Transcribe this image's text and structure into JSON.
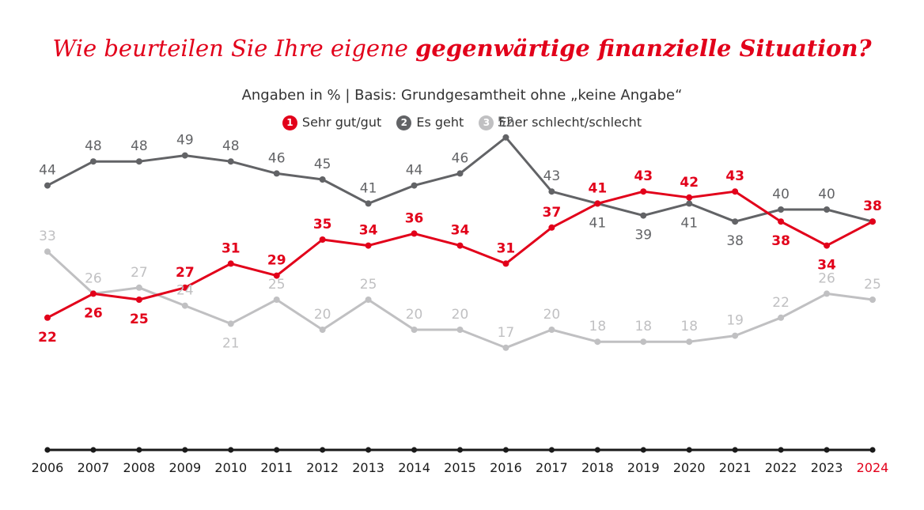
{
  "title": {
    "part1": "Wie beurteilen Sie Ihre eigene ",
    "part2": "gegenwärtige finanzielle Situation?"
  },
  "subtitle": "Angaben in % | Basis: Grundgesamtheit ohne „keine Angabe“",
  "colors": {
    "red": "#e2001a",
    "dark": "#626366",
    "light": "#c0c0c2",
    "axis": "#1a1a1a"
  },
  "chart_data": {
    "type": "line",
    "categories": [
      "2006",
      "2007",
      "2008",
      "2009",
      "2010",
      "2011",
      "2012",
      "2013",
      "2014",
      "2015",
      "2016",
      "2017",
      "2018",
      "2019",
      "2020",
      "2021",
      "2022",
      "2023",
      "2024"
    ],
    "highlight_category": "2024",
    "ylim": [
      0,
      60
    ],
    "series": [
      {
        "key": "s1",
        "number": "1",
        "name": "Sehr gut/gut",
        "color": "#e2001a",
        "values": [
          22,
          26,
          25,
          27,
          31,
          29,
          35,
          34,
          36,
          34,
          31,
          37,
          41,
          43,
          42,
          43,
          38,
          34,
          38
        ]
      },
      {
        "key": "s2",
        "number": "2",
        "name": "Es geht",
        "color": "#626366",
        "values": [
          44,
          48,
          48,
          49,
          48,
          46,
          45,
          41,
          44,
          46,
          52,
          43,
          41,
          39,
          41,
          38,
          40,
          40,
          38
        ]
      },
      {
        "key": "s3",
        "number": "3",
        "name": "Eher schlecht/schlecht",
        "color": "#c0c0c2",
        "values": [
          33,
          26,
          27,
          24,
          21,
          25,
          20,
          25,
          20,
          20,
          17,
          20,
          18,
          18,
          18,
          19,
          22,
          26,
          25
        ]
      }
    ]
  }
}
